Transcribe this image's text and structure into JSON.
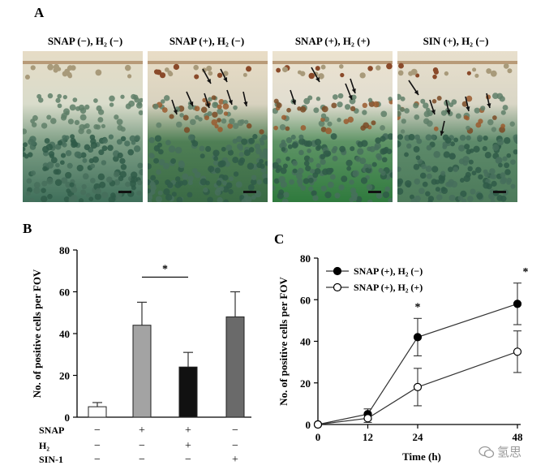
{
  "panel_labels": {
    "a": "A",
    "b": "B",
    "c": "C"
  },
  "micrographs": [
    {
      "title": "SNAP (−), H₂ (−)",
      "arrows": 0
    },
    {
      "title": "SNAP (+), H₂ (−)",
      "arrows": 7
    },
    {
      "title": "SNAP (+), H₂ (+)",
      "arrows": 4
    },
    {
      "title": "SIN (+), H₂ (−)",
      "arrows": 6
    }
  ],
  "chart_data": [
    {
      "type": "bar",
      "ylabel": "No. of positive cells per FOV",
      "ylim": [
        0,
        80
      ],
      "yticks": [
        0,
        20,
        40,
        60,
        80
      ],
      "values": [
        5,
        44,
        24,
        48
      ],
      "errors": [
        2,
        11,
        7,
        12
      ],
      "colors": [
        "#ffffff",
        "#a3a3a3",
        "#111111",
        "#6a6a6a"
      ],
      "significance": "*",
      "significance_between": [
        1,
        2
      ],
      "condition_labels": [
        "SNAP",
        "H₂",
        "SIN-1"
      ],
      "condition_table": [
        [
          "−",
          "+",
          "+",
          "−"
        ],
        [
          "−",
          "−",
          "+",
          "−"
        ],
        [
          "−",
          "−",
          "−",
          "+"
        ]
      ]
    },
    {
      "type": "line",
      "xlabel": "Time (h)",
      "ylabel": "No. of positive cells per FOV",
      "x": [
        0,
        12,
        24,
        48
      ],
      "xlim": [
        0,
        48
      ],
      "ylim": [
        0,
        80
      ],
      "yticks": [
        0,
        20,
        40,
        60,
        80
      ],
      "series": [
        {
          "name": "SNAP (+), H₂ (−)",
          "marker": "filled",
          "values": [
            0,
            5,
            42,
            58
          ],
          "errors": [
            0,
            2.5,
            9,
            10
          ]
        },
        {
          "name": "SNAP (+), H₂ (+)",
          "marker": "open",
          "values": [
            0,
            3,
            18,
            35
          ],
          "errors": [
            0,
            2,
            9,
            10
          ]
        }
      ],
      "significance": [
        {
          "x": 24,
          "label": "*"
        },
        {
          "x": 48,
          "label": "*"
        }
      ]
    }
  ],
  "watermark": {
    "text": "氢思"
  }
}
